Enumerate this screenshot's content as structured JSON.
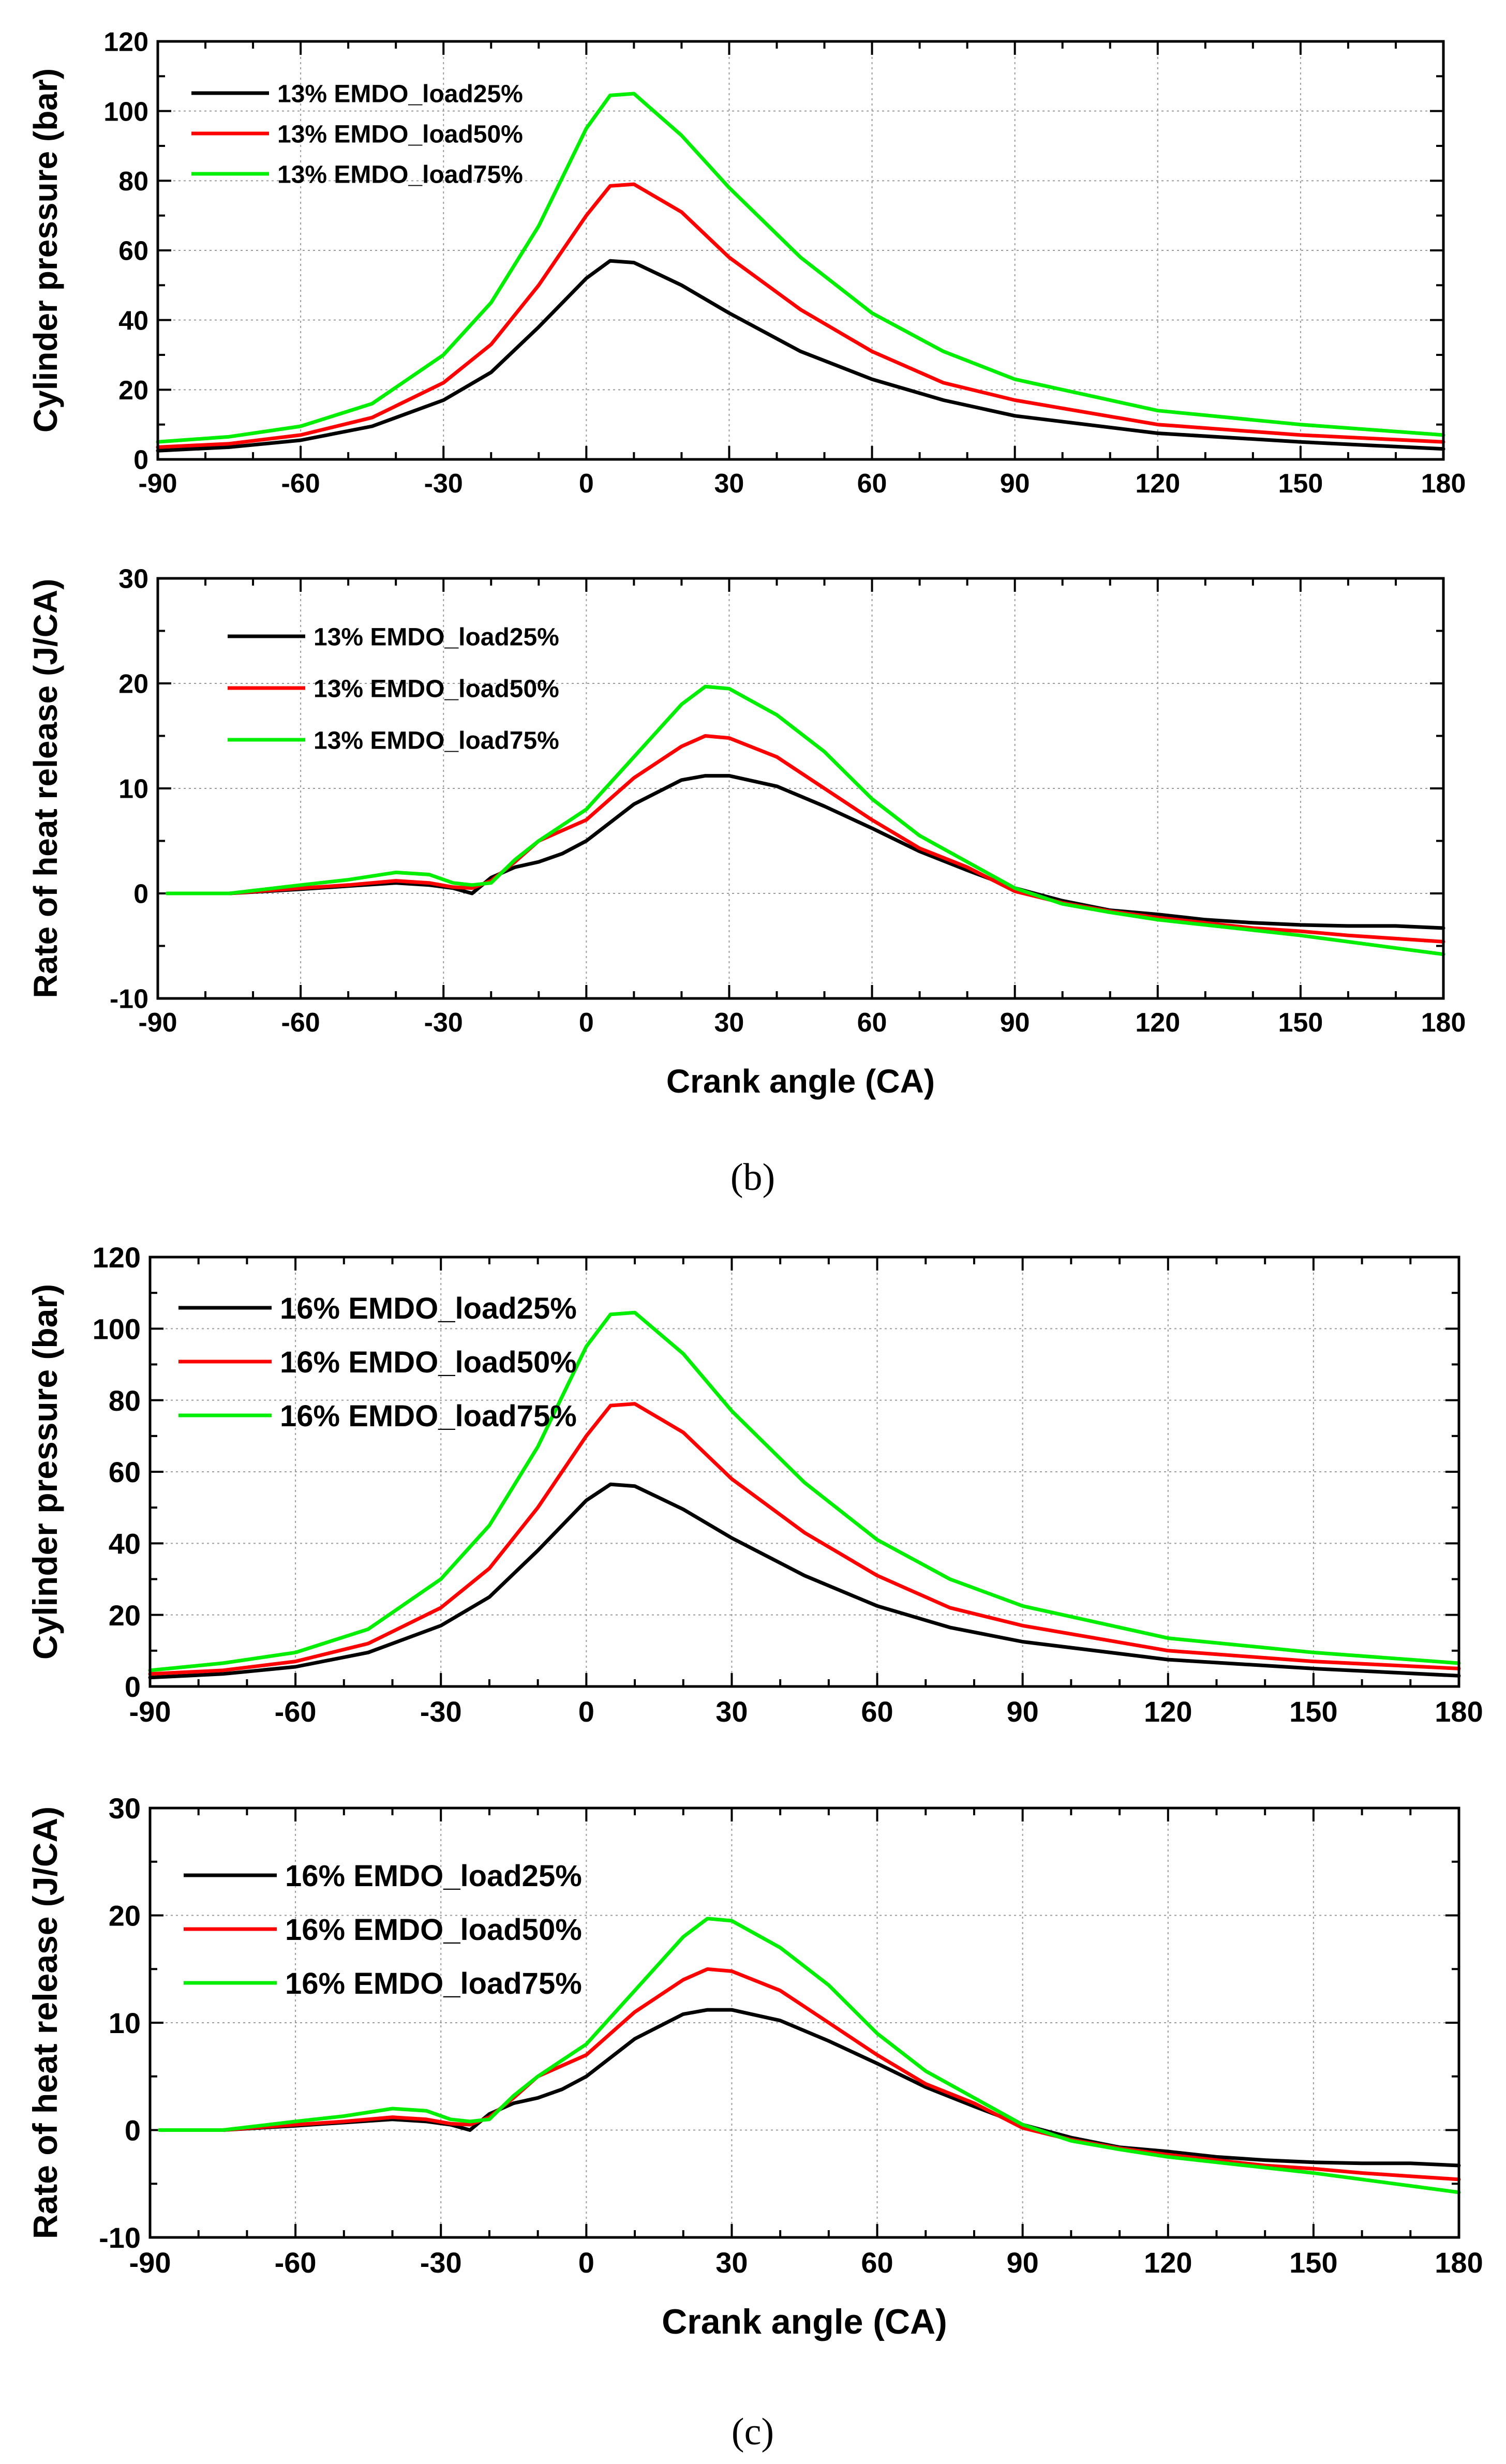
{
  "figure_labels": [
    "(b)",
    "(c)"
  ],
  "chart_data": [
    {
      "type": "line",
      "panel": "b",
      "ylabel": "Cylinder pressure (bar)",
      "xlabel": "",
      "xlim": [
        -90,
        180
      ],
      "ylim": [
        0,
        120
      ],
      "xticks": [
        -90,
        -60,
        -30,
        0,
        30,
        60,
        90,
        120,
        150,
        180
      ],
      "yticks": [
        0,
        20,
        40,
        60,
        80,
        100,
        120
      ],
      "grid": true,
      "legend_position": "top-left",
      "x": [
        -90,
        -75,
        -60,
        -45,
        -30,
        -20,
        -10,
        0,
        5,
        10,
        20,
        30,
        45,
        60,
        75,
        90,
        120,
        150,
        180
      ],
      "series": [
        {
          "name": "13% EMDO_load25%",
          "color": "#000000",
          "values": [
            2.5,
            3.5,
            5.5,
            9.5,
            17,
            25,
            38,
            52,
            57,
            56.5,
            50,
            42,
            31,
            23,
            17,
            12.5,
            7.5,
            5,
            3
          ]
        },
        {
          "name": "13% EMDO_load50%",
          "color": "#ff0000",
          "values": [
            3.5,
            4.5,
            7,
            12,
            22,
            33,
            50,
            70,
            78.5,
            79,
            71,
            58,
            43,
            31,
            22,
            17,
            10,
            7,
            5
          ]
        },
        {
          "name": "13% EMDO_load75%",
          "color": "#00ee00",
          "values": [
            5,
            6.5,
            9.5,
            16,
            30,
            45,
            67,
            95,
            104.5,
            105,
            93,
            78,
            58,
            42,
            31,
            23,
            14,
            10,
            7
          ]
        }
      ]
    },
    {
      "type": "line",
      "panel": "b",
      "ylabel": "Rate of heat release (J/CA)",
      "xlabel": "Crank angle (CA)",
      "xlim": [
        -90,
        180
      ],
      "ylim": [
        -10,
        30
      ],
      "xticks": [
        -90,
        -60,
        -30,
        0,
        30,
        60,
        90,
        120,
        150,
        180
      ],
      "yticks": [
        -10,
        0,
        10,
        20,
        30
      ],
      "grid": true,
      "legend_position": "top-left",
      "x": [
        -88,
        -75,
        -60,
        -50,
        -40,
        -33,
        -28,
        -24,
        -20,
        -15,
        -10,
        -5,
        0,
        10,
        20,
        25,
        30,
        40,
        50,
        60,
        70,
        80,
        90,
        100,
        110,
        120,
        130,
        140,
        150,
        160,
        170,
        180
      ],
      "series": [
        {
          "name": "13% EMDO_load25%",
          "color": "#000000",
          "values": [
            0,
            0,
            0.4,
            0.7,
            1,
            0.8,
            0.5,
            0,
            1.5,
            2.5,
            3,
            3.8,
            5,
            8.5,
            10.8,
            11.2,
            11.2,
            10.2,
            8.3,
            6.2,
            4,
            2.2,
            0.5,
            -0.7,
            -1.6,
            -2,
            -2.5,
            -2.8,
            -3,
            -3.1,
            -3.1,
            -3.3
          ]
        },
        {
          "name": "13% EMDO_load50%",
          "color": "#ff0000",
          "values": [
            0,
            0,
            0.5,
            0.8,
            1.2,
            1,
            0.6,
            0.5,
            1.2,
            3,
            5,
            6,
            7,
            11,
            14,
            15,
            14.8,
            13,
            10,
            7,
            4.3,
            2.5,
            0.2,
            -0.9,
            -1.7,
            -2.3,
            -2.8,
            -3.3,
            -3.6,
            -4,
            -4.3,
            -4.6
          ]
        },
        {
          "name": "13% EMDO_load75%",
          "color": "#00ee00",
          "values": [
            0,
            0,
            0.8,
            1.3,
            2,
            1.8,
            1,
            0.8,
            1,
            3.2,
            5,
            6.5,
            8,
            13,
            18,
            19.7,
            19.5,
            17,
            13.5,
            9,
            5.5,
            3,
            0.5,
            -1,
            -1.8,
            -2.5,
            -3,
            -3.5,
            -4,
            -4.6,
            -5.2,
            -5.8
          ]
        }
      ]
    },
    {
      "type": "line",
      "panel": "c",
      "ylabel": "Cylinder pressure (bar)",
      "xlabel": "",
      "xlim": [
        -90,
        180
      ],
      "ylim": [
        0,
        120
      ],
      "xticks": [
        -90,
        -60,
        -30,
        0,
        30,
        60,
        90,
        120,
        150,
        180
      ],
      "yticks": [
        0,
        20,
        40,
        60,
        80,
        100,
        120
      ],
      "grid": true,
      "legend_position": "top-left",
      "x": [
        -90,
        -75,
        -60,
        -45,
        -30,
        -20,
        -10,
        0,
        5,
        10,
        20,
        30,
        45,
        60,
        75,
        90,
        120,
        150,
        180
      ],
      "series": [
        {
          "name": "16% EMDO_load25%",
          "color": "#000000",
          "values": [
            2.5,
            3.5,
            5.5,
            9.5,
            17,
            25,
            38,
            52,
            56.5,
            56,
            49.5,
            41.5,
            31,
            22.5,
            16.5,
            12.5,
            7.5,
            5,
            3
          ]
        },
        {
          "name": "16% EMDO_load50%",
          "color": "#ff0000",
          "values": [
            3.5,
            4.5,
            7,
            12,
            22,
            33,
            50,
            70,
            78.5,
            79,
            71,
            58,
            43,
            31,
            22,
            17,
            10,
            7,
            5
          ]
        },
        {
          "name": "16% EMDO_load75%",
          "color": "#00ee00",
          "values": [
            4.5,
            6.5,
            9.5,
            16,
            30,
            45,
            67,
            95,
            104,
            104.5,
            93,
            77,
            57,
            41,
            30,
            22.5,
            13.5,
            9.5,
            6.5
          ]
        }
      ]
    },
    {
      "type": "line",
      "panel": "c",
      "ylabel": "Rate of heat release (J/CA)",
      "xlabel": "Crank angle (CA)",
      "xlim": [
        -90,
        180
      ],
      "ylim": [
        -10,
        30
      ],
      "xticks": [
        -90,
        -60,
        -30,
        0,
        30,
        60,
        90,
        120,
        150,
        180
      ],
      "yticks": [
        -10,
        0,
        10,
        20,
        30
      ],
      "grid": true,
      "legend_position": "top-left",
      "x": [
        -88,
        -75,
        -60,
        -50,
        -40,
        -33,
        -28,
        -24,
        -20,
        -15,
        -10,
        -5,
        0,
        10,
        20,
        25,
        30,
        40,
        50,
        60,
        70,
        80,
        90,
        100,
        110,
        120,
        130,
        140,
        150,
        160,
        170,
        180
      ],
      "series": [
        {
          "name": "16% EMDO_load25%",
          "color": "#000000",
          "values": [
            0,
            0,
            0.4,
            0.7,
            1,
            0.8,
            0.5,
            0,
            1.5,
            2.5,
            3,
            3.8,
            5,
            8.5,
            10.8,
            11.2,
            11.2,
            10.2,
            8.3,
            6.2,
            4,
            2.2,
            0.5,
            -0.7,
            -1.6,
            -2,
            -2.5,
            -2.8,
            -3,
            -3.1,
            -3.1,
            -3.3
          ]
        },
        {
          "name": "16% EMDO_load50%",
          "color": "#ff0000",
          "values": [
            0,
            0,
            0.5,
            0.8,
            1.2,
            1,
            0.6,
            0.5,
            1.2,
            3,
            5,
            6,
            7,
            11,
            14,
            15,
            14.8,
            13,
            10,
            7,
            4.3,
            2.5,
            0.2,
            -0.9,
            -1.7,
            -2.3,
            -2.8,
            -3.3,
            -3.6,
            -4,
            -4.3,
            -4.6
          ]
        },
        {
          "name": "16% EMDO_load75%",
          "color": "#00ee00",
          "values": [
            0,
            0,
            0.8,
            1.3,
            2,
            1.8,
            1,
            0.8,
            1,
            3.2,
            5,
            6.5,
            8,
            13,
            18,
            19.7,
            19.5,
            17,
            13.5,
            9,
            5.5,
            3,
            0.5,
            -1,
            -1.8,
            -2.5,
            -3,
            -3.5,
            -4,
            -4.6,
            -5.2,
            -5.8
          ]
        }
      ]
    }
  ]
}
